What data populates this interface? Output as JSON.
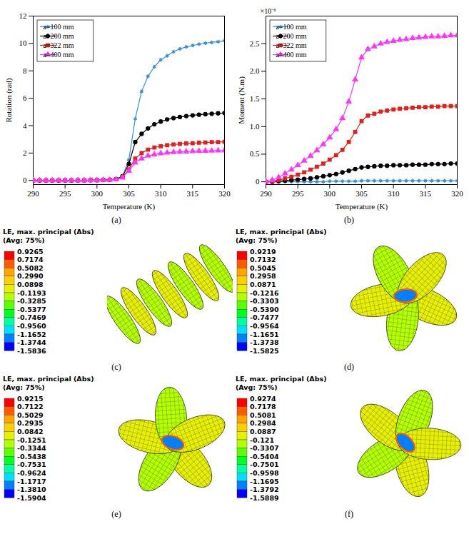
{
  "chart_data": [
    {
      "type": "line",
      "panel_label": "(a)",
      "x_label": "Temperature (K)",
      "y_label": "Rotation (rad)",
      "xlim": [
        290,
        320
      ],
      "xticks": [
        290,
        295,
        300,
        305,
        310,
        315,
        320
      ],
      "ylim": [
        -0.3,
        12
      ],
      "yticks": [
        0,
        2,
        4,
        6,
        8,
        10,
        12
      ],
      "grid": false,
      "legend": "top-left",
      "x": [
        290,
        291,
        292,
        293,
        294,
        295,
        296,
        297,
        298,
        299,
        300,
        301,
        302,
        303,
        304,
        305,
        306,
        307,
        308,
        309,
        310,
        311,
        312,
        313,
        314,
        315,
        316,
        317,
        318,
        319,
        320
      ],
      "series": [
        {
          "name": "a=100 mm",
          "color": "#3a8fd9",
          "marker": "asterisk",
          "values": [
            0,
            0,
            0,
            0,
            0,
            0,
            0,
            0.01,
            0.01,
            0.02,
            0.02,
            0.03,
            0.05,
            0.1,
            0.3,
            1.5,
            4.5,
            6.5,
            7.6,
            8.3,
            8.8,
            9.1,
            9.4,
            9.6,
            9.75,
            9.85,
            9.95,
            10.02,
            10.08,
            10.13,
            10.2
          ]
        },
        {
          "name": "a=200 mm",
          "color": "#000000",
          "marker": "circle",
          "values": [
            0,
            0,
            0,
            0,
            0,
            0,
            0,
            0.01,
            0.01,
            0.02,
            0.02,
            0.03,
            0.05,
            0.1,
            0.3,
            1.2,
            2.8,
            3.4,
            3.8,
            4.1,
            4.3,
            4.45,
            4.55,
            4.63,
            4.7,
            4.75,
            4.8,
            4.84,
            4.87,
            4.9,
            4.92
          ]
        },
        {
          "name": "a=322 mm",
          "color": "#e0201b",
          "marker": "square",
          "values": [
            0,
            0,
            0,
            0,
            0,
            0,
            0,
            0.01,
            0.01,
            0.02,
            0.02,
            0.03,
            0.04,
            0.08,
            0.25,
            0.8,
            1.6,
            2.0,
            2.25,
            2.4,
            2.5,
            2.57,
            2.62,
            2.66,
            2.7,
            2.72,
            2.75,
            2.77,
            2.79,
            2.8,
            2.82
          ]
        },
        {
          "name": "a=400 mm",
          "color": "#ff33ff",
          "marker": "triangle",
          "values": [
            0,
            0,
            0,
            0,
            0,
            0,
            0,
            0.01,
            0.01,
            0.02,
            0.02,
            0.03,
            0.04,
            0.07,
            0.2,
            0.7,
            1.3,
            1.6,
            1.8,
            1.9,
            1.97,
            2.02,
            2.06,
            2.09,
            2.11,
            2.13,
            2.15,
            2.16,
            2.17,
            2.18,
            2.19
          ]
        }
      ]
    },
    {
      "type": "line",
      "panel_label": "(b)",
      "x_label": "Temperature (K)",
      "y_label": "Moment (N.m)",
      "y_exponent_label": "×10⁻⁶",
      "xlim": [
        290,
        320
      ],
      "xticks": [
        290,
        295,
        300,
        305,
        310,
        315,
        320
      ],
      "ylim": [
        -0.05,
        3
      ],
      "yticks": [
        0,
        0.5,
        {
          "value": 1,
          "label": "1.0"
        },
        1.5,
        {
          "value": 2,
          "label": "2.0"
        },
        2.5
      ],
      "grid": false,
      "legend": "top-left",
      "x": [
        290,
        291,
        292,
        293,
        294,
        295,
        296,
        297,
        298,
        299,
        300,
        301,
        302,
        303,
        304,
        305,
        306,
        307,
        308,
        309,
        310,
        311,
        312,
        313,
        314,
        315,
        316,
        317,
        318,
        319,
        320
      ],
      "series": [
        {
          "name": "a=100 mm",
          "color": "#3a8fd9",
          "marker": "asterisk",
          "values": [
            0,
            0,
            0,
            0,
            0,
            0,
            0,
            0,
            0,
            0,
            0.01,
            0.01,
            0.01,
            0.01,
            0.01,
            0.02,
            0.02,
            0.02,
            0.02,
            0.02,
            0.02,
            0.02,
            0.02,
            0.02,
            0.02,
            0.02,
            0.02,
            0.02,
            0.02,
            0.02,
            0.02
          ]
        },
        {
          "name": "a=200 mm",
          "color": "#000000",
          "marker": "circle",
          "values": [
            0,
            0,
            0.01,
            0.02,
            0.03,
            0.04,
            0.05,
            0.06,
            0.08,
            0.1,
            0.12,
            0.14,
            0.17,
            0.2,
            0.23,
            0.26,
            0.27,
            0.28,
            0.29,
            0.29,
            0.3,
            0.3,
            0.3,
            0.31,
            0.31,
            0.31,
            0.32,
            0.32,
            0.32,
            0.33,
            0.33
          ]
        },
        {
          "name": "a=322 mm",
          "color": "#e0201b",
          "marker": "square",
          "values": [
            0,
            0.01,
            0.03,
            0.06,
            0.09,
            0.13,
            0.17,
            0.22,
            0.27,
            0.33,
            0.4,
            0.48,
            0.58,
            0.72,
            0.9,
            1.1,
            1.2,
            1.23,
            1.27,
            1.29,
            1.31,
            1.32,
            1.33,
            1.34,
            1.35,
            1.35,
            1.36,
            1.36,
            1.37,
            1.37,
            1.37
          ]
        },
        {
          "name": "a=400 mm",
          "color": "#ff33ff",
          "marker": "triangle",
          "values": [
            0,
            0.03,
            0.08,
            0.15,
            0.22,
            0.3,
            0.38,
            0.47,
            0.57,
            0.68,
            0.8,
            0.95,
            1.15,
            1.45,
            1.85,
            2.25,
            2.4,
            2.45,
            2.5,
            2.53,
            2.55,
            2.57,
            2.58,
            2.6,
            2.61,
            2.62,
            2.63,
            2.63,
            2.64,
            2.65,
            2.65
          ]
        }
      ]
    }
  ],
  "contour_panels": {
    "colors": [
      "#ff0000",
      "#ff5a00",
      "#ffa500",
      "#ffd000",
      "#e6f000",
      "#b4ff00",
      "#5aff00",
      "#00ff20",
      "#00ffa0",
      "#00e0ff",
      "#0080ff",
      "#0000ff"
    ],
    "panels": [
      {
        "label": "(c)",
        "legend_title": "LE, max. principal (Abs)",
        "legend_subtitle": "(Avg: 75%)",
        "levels": [
          0.9265,
          0.7174,
          0.5082,
          {
            "value": 0.299,
            "label": "0.2990"
          },
          0.0898,
          -0.1193,
          -0.3285,
          -0.5377,
          -0.7469,
          {
            "value": -0.956,
            "label": "-0.9560"
          },
          -1.1652,
          -1.3744,
          -1.5836
        ]
      },
      {
        "label": "(d)",
        "legend_title": "LE, max. principal (Abs)",
        "legend_subtitle": "(Avg: 75%)",
        "levels": [
          0.9219,
          0.7132,
          0.5045,
          0.2958,
          0.0871,
          -0.1216,
          -0.3303,
          {
            "value": -0.539,
            "label": "-0.5390"
          },
          -0.7477,
          -0.9564,
          -1.1651,
          -1.3738,
          -1.5825
        ]
      },
      {
        "label": "(e)",
        "legend_title": "LE, max. principal (Abs)",
        "legend_subtitle": "(Avg: 75%)",
        "levels": [
          0.9215,
          0.7122,
          0.5029,
          0.2935,
          0.0842,
          -0.1251,
          -0.3344,
          -0.5438,
          -0.7531,
          -0.9624,
          -1.1717,
          {
            "value": -1.381,
            "label": "-1.3810"
          },
          -1.5904
        ]
      },
      {
        "label": "(f)",
        "legend_title": "LE, max. principal (Abs)",
        "legend_subtitle": "(Avg: 75%)",
        "levels": [
          0.9274,
          0.7178,
          0.5081,
          0.2984,
          0.0887,
          -0.121,
          -0.3307,
          -0.5404,
          -0.7501,
          -0.9598,
          -1.1695,
          -1.3792,
          -1.5889
        ]
      }
    ]
  }
}
